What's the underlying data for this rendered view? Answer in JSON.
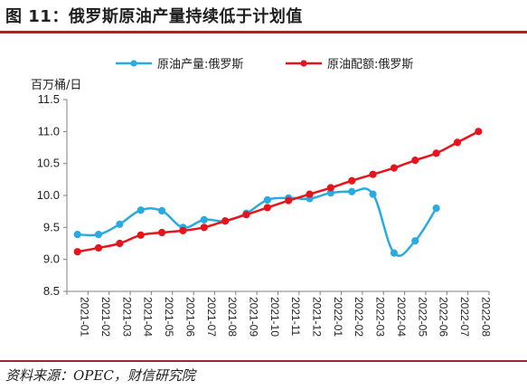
{
  "title": "图 11：俄罗斯原油产量持续低于计划值",
  "source": "资料来源：OPEC，财信研究院",
  "chart_data": {
    "type": "line",
    "ylabel": "百万桶/日",
    "ylim": [
      8.5,
      11.5
    ],
    "yticks": [
      "8.5",
      "9.0",
      "9.5",
      "10.0",
      "10.5",
      "11.0",
      "11.5"
    ],
    "categories": [
      "2021-01",
      "2021-02",
      "2021-03",
      "2021-04",
      "2021-05",
      "2021-06",
      "2021-07",
      "2021-08",
      "2021-09",
      "2021-10",
      "2021-11",
      "2021-12",
      "2022-01",
      "2022-02",
      "2022-03",
      "2022-04",
      "2022-05",
      "2022-06",
      "2022-07",
      "2022-08"
    ],
    "series": [
      {
        "name": "原油产量:俄罗斯",
        "color": "#29abe2",
        "values": [
          9.39,
          9.39,
          9.55,
          9.77,
          9.76,
          9.5,
          9.62,
          9.6,
          9.72,
          9.93,
          9.96,
          9.95,
          10.04,
          10.06,
          10.02,
          9.1,
          9.29,
          9.8,
          null,
          null
        ]
      },
      {
        "name": "原油配额:俄罗斯",
        "color": "#e8141c",
        "values": [
          9.12,
          9.18,
          9.25,
          9.38,
          9.42,
          9.45,
          9.5,
          9.6,
          9.7,
          9.81,
          9.92,
          10.02,
          10.12,
          10.23,
          10.33,
          10.43,
          10.55,
          10.66,
          10.83,
          11.0
        ]
      }
    ],
    "legend": "top"
  }
}
